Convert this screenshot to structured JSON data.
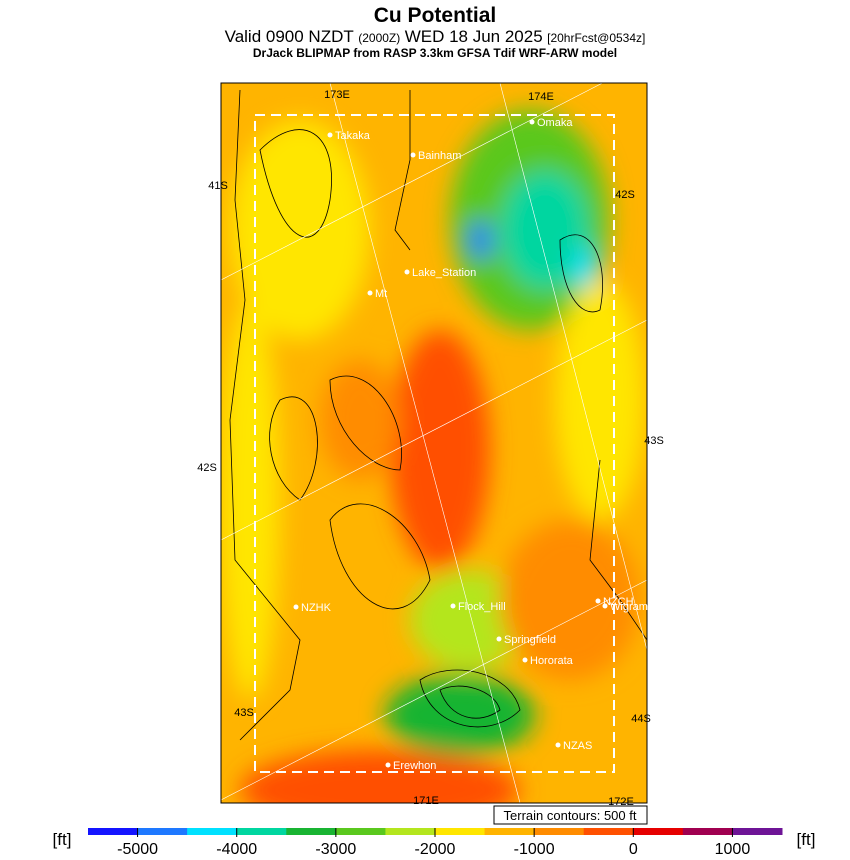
{
  "header": {
    "title": "Cu Potential",
    "valid": "Valid 0900 NZDT",
    "utc": "(2000Z)",
    "date": "WED 18 Jun 2025",
    "forecast": "[20hrFcst@0534z]",
    "model": "DrJack BLIPMAP from RASP 3.3km GFSA Tdif WRF-ARW model"
  },
  "map": {
    "grid_labels": [
      "173E",
      "174E",
      "41S",
      "42S",
      "42S",
      "43S",
      "43S",
      "44S",
      "171E",
      "172E"
    ],
    "places": [
      "Takaka",
      "Bainham",
      "Omaka",
      "Lake_Station",
      "Mt",
      "NZHK",
      "Flock_Hill",
      "NZCH",
      "Wigram",
      "Springfield",
      "Hororata",
      "NZAS",
      "Erewhon"
    ],
    "terrain_note": "Terrain contours: 500 ft"
  },
  "colorbar": {
    "unit": "[ft]",
    "lim": [
      -5500,
      1500
    ],
    "ticks": [
      -5000,
      -4000,
      -3000,
      -2000,
      -1000,
      0,
      1000
    ],
    "colors": [
      "#1414ff",
      "#1e78ff",
      "#00e1ff",
      "#00d6a0",
      "#19b432",
      "#5ac81e",
      "#b4e61e",
      "#ffe600",
      "#ffb400",
      "#ff8c00",
      "#ff5000",
      "#e60000",
      "#a00050",
      "#6e1496"
    ]
  }
}
